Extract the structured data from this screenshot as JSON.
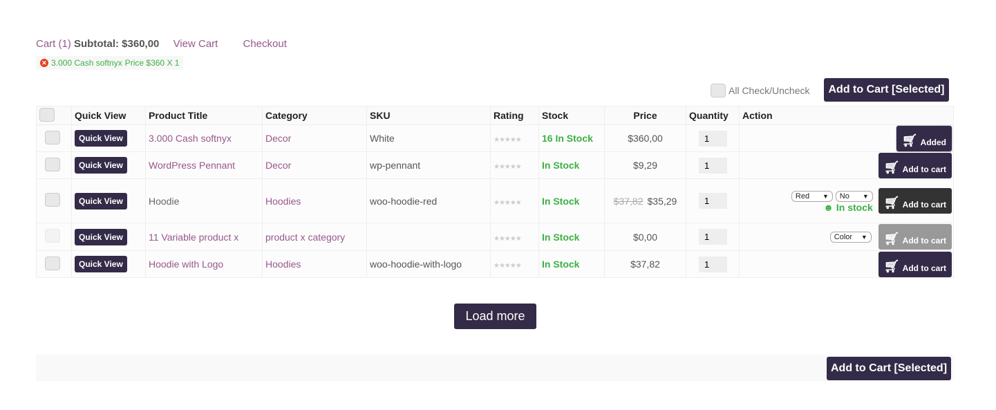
{
  "cart": {
    "label": "Cart (1)",
    "subtotal": "Subtotal: $360,00",
    "view_cart": "View Cart",
    "checkout": "Checkout"
  },
  "notice": {
    "item": "3.000 Cash softnyx",
    "price": "Price $360 X 1"
  },
  "bulk": {
    "check_all": "All Check/Uncheck",
    "add_selected": "Add to Cart [Selected]"
  },
  "columns": [
    "",
    "Quick View",
    "Product Title",
    "Category",
    "SKU",
    "Rating",
    "Stock",
    "Price",
    "Quantity",
    "Action"
  ],
  "rows": [
    {
      "quick": "Quick View",
      "title": "3.000 Cash softnyx",
      "category": "Decor",
      "sku": "White",
      "rating": 0,
      "stock": "16 In Stock",
      "price": "$360,00",
      "qty": "1",
      "action": "Added"
    },
    {
      "quick": "Quick View",
      "title": "WordPress Pennant",
      "category": "Decor",
      "sku": "wp-pennant",
      "rating": 0,
      "stock": "In Stock",
      "price": "$9,29",
      "qty": "1",
      "action": "Add to cart"
    },
    {
      "quick": "Quick View",
      "title": "Hoodie",
      "category": "Hoodies",
      "sku": "woo-hoodie-red",
      "rating": 0,
      "stock": "In Stock",
      "old_price": "$37,82",
      "price": "$35,29",
      "qty": "1",
      "action": "Add to cart",
      "variant1": "Red",
      "variant2": "No",
      "variant_stock": "In stock"
    },
    {
      "quick": "Quick View",
      "title": "11 Variable product x",
      "category": "product x category",
      "sku": "",
      "rating": 0,
      "stock": "In Stock",
      "price": "$0,00",
      "qty": "1",
      "action": "Add to cart",
      "variant1": "Color"
    },
    {
      "quick": "Quick View",
      "title": "Hoodie with Logo",
      "category": "Hoodies",
      "sku": "woo-hoodie-with-logo",
      "rating": 0,
      "stock": "In Stock",
      "price": "$37,82",
      "qty": "1",
      "action": "Add to cart"
    }
  ],
  "stars": "★★★★★",
  "load_more": "Load more",
  "colors": {
    "accent": "#332b47",
    "link": "#96588a",
    "stock": "#3cb043"
  }
}
